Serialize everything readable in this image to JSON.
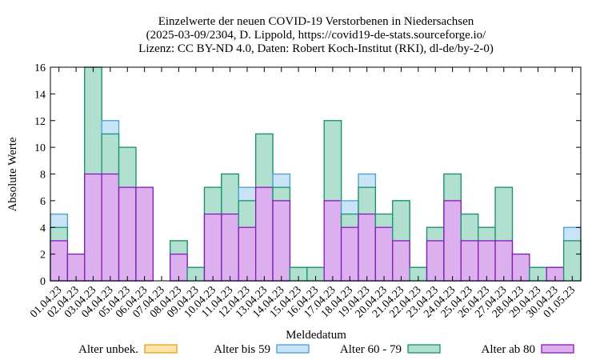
{
  "chart_data": {
    "type": "bar",
    "stacked": true,
    "title_lines": [
      "Einzelwerte der neuen COVID-19 Verstorbenen in Niedersachsen",
      "(2025-03-09/2304, D. Lippold, https://covid19-de-stats.sourceforge.io/",
      "Lizenz: CC BY-ND 4.0, Daten: Robert Koch-Institut (RKI), dl-de/by-2-0)"
    ],
    "xlabel": "Meldedatum",
    "ylabel": "Absolute Werte",
    "ylim": [
      0,
      16
    ],
    "yticks": [
      0,
      2,
      4,
      6,
      8,
      10,
      12,
      14,
      16
    ],
    "categories": [
      "01.04.23",
      "02.04.23",
      "03.04.23",
      "04.04.23",
      "05.04.23",
      "06.04.23",
      "07.04.23",
      "08.04.23",
      "09.04.23",
      "10.04.23",
      "11.04.23",
      "12.04.23",
      "13.04.23",
      "14.04.23",
      "15.04.23",
      "16.04.23",
      "17.04.23",
      "18.04.23",
      "19.04.23",
      "20.04.23",
      "21.04.23",
      "22.04.23",
      "23.04.23",
      "24.04.23",
      "25.04.23",
      "26.04.23",
      "27.04.23",
      "28.04.23",
      "29.04.23",
      "30.04.23",
      "01.05.23"
    ],
    "series": [
      {
        "name": "Alter unbek.",
        "fill": "#fde3a7",
        "stroke": "#e0a020",
        "values": [
          0,
          0,
          0,
          0,
          0,
          0,
          0,
          0,
          0,
          0,
          0,
          0,
          0,
          0,
          0,
          0,
          0,
          0,
          0,
          0,
          0,
          0,
          0,
          0,
          0,
          0,
          0,
          0,
          0,
          0,
          0
        ]
      },
      {
        "name": "Alter ab 80",
        "fill": "#dcb0ee",
        "stroke": "#8a18b8",
        "values": [
          3,
          2,
          8,
          8,
          7,
          7,
          0,
          2,
          0,
          5,
          5,
          4,
          7,
          6,
          0,
          0,
          6,
          4,
          5,
          4,
          3,
          0,
          3,
          6,
          3,
          3,
          3,
          2,
          0,
          1,
          0
        ]
      },
      {
        "name": "Alter 60 - 79",
        "fill": "#b2e0d0",
        "stroke": "#1a9070",
        "values": [
          1,
          0,
          8,
          3,
          3,
          0,
          0,
          1,
          1,
          2,
          3,
          2,
          4,
          1,
          1,
          1,
          6,
          1,
          2,
          1,
          3,
          1,
          1,
          2,
          2,
          1,
          4,
          0,
          1,
          0,
          3
        ]
      },
      {
        "name": "Alter bis 59",
        "fill": "#c8e4f6",
        "stroke": "#4a9fd0",
        "values": [
          1,
          0,
          0,
          1,
          0,
          0,
          0,
          0,
          0,
          0,
          0,
          1,
          0,
          1,
          0,
          0,
          0,
          1,
          1,
          0,
          0,
          0,
          0,
          0,
          0,
          0,
          0,
          0,
          0,
          0,
          1
        ]
      }
    ],
    "legend_order": [
      "Alter unbek.",
      "Alter bis 59",
      "Alter 60 - 79",
      "Alter ab 80"
    ],
    "legend_position": "bottom",
    "grid": false
  }
}
